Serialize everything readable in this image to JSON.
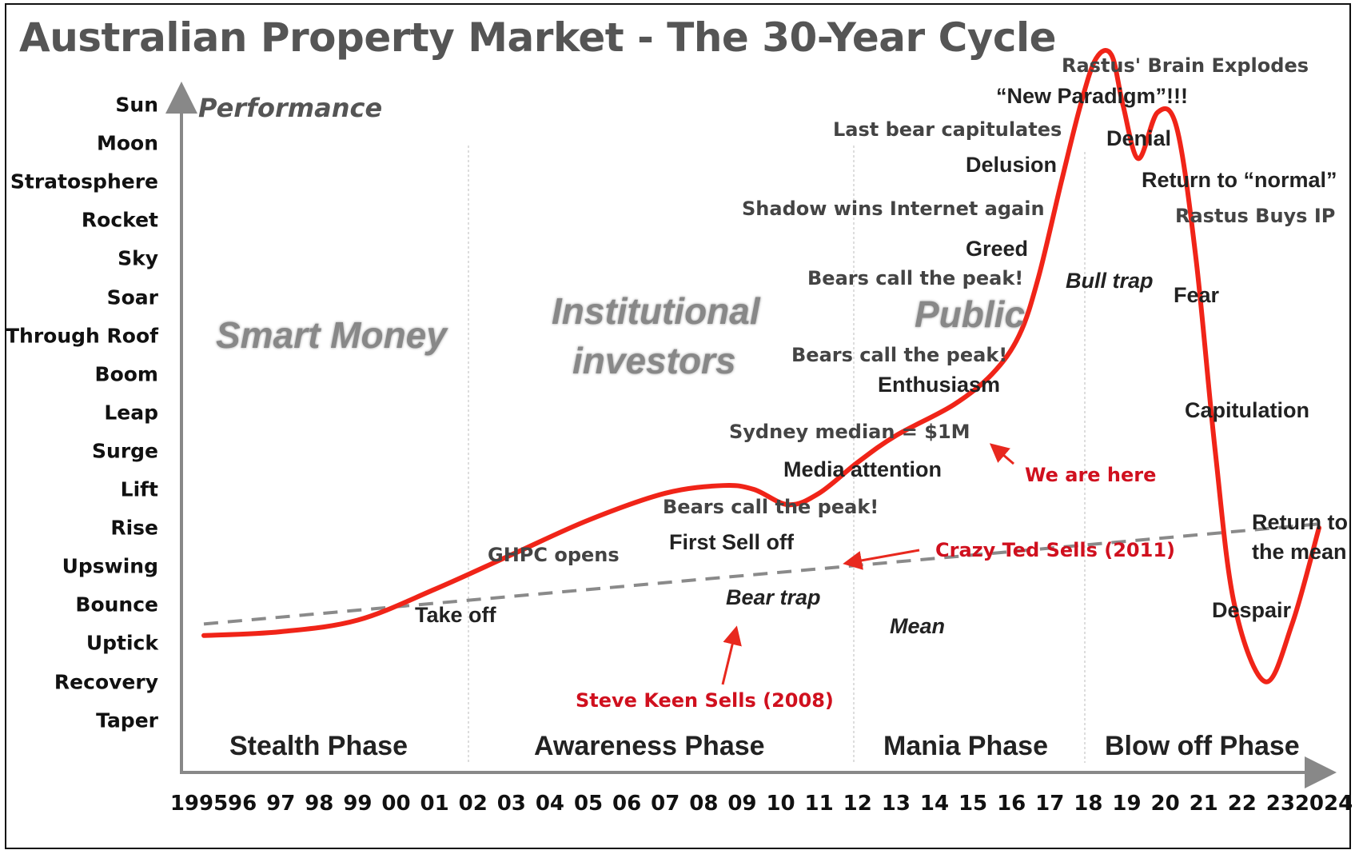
{
  "chart_data": {
    "type": "line",
    "title": "Australian Property Market - The 30-Year Cycle",
    "ylabel": "Performance",
    "xlabel": "",
    "x_tick_labels": [
      "1995",
      "96",
      "97",
      "98",
      "99",
      "00",
      "01",
      "02",
      "03",
      "04",
      "05",
      "06",
      "07",
      "08",
      "09",
      "10",
      "11",
      "12",
      "13",
      "14",
      "15",
      "16",
      "17",
      "18",
      "19",
      "20",
      "21",
      "22",
      "23",
      "2024"
    ],
    "y_tick_labels": [
      "Sun",
      "Moon",
      "Stratosphere",
      "Rocket",
      "Sky",
      "Soar",
      "Through Roof",
      "Boom",
      "Leap",
      "Surge",
      "Lift",
      "Rise",
      "Upswing",
      "Bounce",
      "Uptick",
      "Recovery",
      "Taper"
    ],
    "xlim": [
      1995,
      2024
    ],
    "ylim_levels": [
      "Taper",
      "Sun"
    ],
    "grid": false,
    "series": [
      {
        "name": "Performance",
        "color": "#f02418",
        "points": [
          {
            "x": 1995.0,
            "y": 2.2
          },
          {
            "x": 1997.0,
            "y": 2.3
          },
          {
            "x": 1999.0,
            "y": 2.6
          },
          {
            "x": 2001.0,
            "y": 3.4
          },
          {
            "x": 2003.0,
            "y": 4.3
          },
          {
            "x": 2005.0,
            "y": 5.2
          },
          {
            "x": 2007.0,
            "y": 5.9
          },
          {
            "x": 2008.5,
            "y": 6.1
          },
          {
            "x": 2009.3,
            "y": 6.0
          },
          {
            "x": 2010.2,
            "y": 5.6
          },
          {
            "x": 2011.0,
            "y": 5.9
          },
          {
            "x": 2012.0,
            "y": 6.7
          },
          {
            "x": 2013.0,
            "y": 7.4
          },
          {
            "x": 2014.5,
            "y": 8.2
          },
          {
            "x": 2015.5,
            "y": 9.0
          },
          {
            "x": 2016.2,
            "y": 10.0
          },
          {
            "x": 2016.7,
            "y": 11.5
          },
          {
            "x": 2017.3,
            "y": 14.0
          },
          {
            "x": 2017.8,
            "y": 16.0
          },
          {
            "x": 2018.2,
            "y": 17.2
          },
          {
            "x": 2018.6,
            "y": 17.3
          },
          {
            "x": 2018.9,
            "y": 16.0
          },
          {
            "x": 2019.3,
            "y": 14.6
          },
          {
            "x": 2019.8,
            "y": 15.8
          },
          {
            "x": 2020.3,
            "y": 15.4
          },
          {
            "x": 2020.8,
            "y": 12.0
          },
          {
            "x": 2021.3,
            "y": 7.0
          },
          {
            "x": 2021.8,
            "y": 3.0
          },
          {
            "x": 2022.6,
            "y": 1.0
          },
          {
            "x": 2023.3,
            "y": 2.5
          },
          {
            "x": 2024.0,
            "y": 5.0
          }
        ]
      },
      {
        "name": "Mean",
        "style": "dashed",
        "color": "#8a8a8a",
        "points": [
          {
            "x": 1995.0,
            "y": 2.5
          },
          {
            "x": 2024.0,
            "y": 5.1
          }
        ]
      }
    ],
    "phases": [
      {
        "label": "Stealth Phase",
        "range": [
          1995,
          2002
        ]
      },
      {
        "label": "Awareness Phase",
        "range": [
          2002,
          2012
        ]
      },
      {
        "label": "Mania Phase",
        "range": [
          2012,
          2018.5
        ]
      },
      {
        "label": "Blow off Phase",
        "range": [
          2018.5,
          2024
        ]
      }
    ],
    "background_labels": [
      "Smart Money",
      "Institutional investors",
      "Public"
    ],
    "annotations": [
      {
        "text": "Take off",
        "x": 2001.5
      },
      {
        "text": "GHPC opens",
        "x": 2005
      },
      {
        "text": "First Sell off",
        "x": 2008.8
      },
      {
        "text": "Bear trap",
        "x": 2010
      },
      {
        "text": "Bears call the peak!",
        "x": 2010.8
      },
      {
        "text": "Media attention",
        "x": 2013.5
      },
      {
        "text": "Sydney median = $1M",
        "x": 2013.5
      },
      {
        "text": "Enthusiasm",
        "x": 2015.7
      },
      {
        "text": "Bears call the peak!",
        "x": 2014.3
      },
      {
        "text": "Public",
        "x": 2016
      },
      {
        "text": "Bears call the peak!",
        "x": 2014.7
      },
      {
        "text": "Greed",
        "x": 2016.5
      },
      {
        "text": "Shadow wins Internet again",
        "x": 2014.5
      },
      {
        "text": "Delusion",
        "x": 2016.5
      },
      {
        "text": "Last bear capitulates",
        "x": 2016
      },
      {
        "text": "“New Paradigm”!!!",
        "x": 2018.6
      },
      {
        "text": "Rastus' Brain Explodes",
        "x": 2020
      },
      {
        "text": "Denial",
        "x": 2019.5
      },
      {
        "text": "Return to “normal”",
        "x": 2021.3
      },
      {
        "text": "Rastus Buys IP",
        "x": 2022
      },
      {
        "text": "Bull trap",
        "x": 2019.2
      },
      {
        "text": "Fear",
        "x": 2020.5
      },
      {
        "text": "Capitulation",
        "x": 2021.6
      },
      {
        "text": "Despair",
        "x": 2022.8
      },
      {
        "text": "Return to the mean",
        "x": 2023.5
      },
      {
        "text": "Mean",
        "x": 2013
      },
      {
        "text": "We are here",
        "x": 2017.5,
        "color": "red"
      },
      {
        "text": "Crazy Ted Sells (2011)",
        "x": 2016.5,
        "color": "red"
      },
      {
        "text": "Steve Keen Sells (2008)",
        "x": 2009,
        "color": "red"
      }
    ]
  },
  "labels": {
    "title": "Australian Property Market - The 30-Year Cycle",
    "performance": "Performance",
    "smart_money": "Smart Money",
    "institutional_1": "Institutional",
    "institutional_2": "investors",
    "public": "Public",
    "phases": [
      "Stealth Phase",
      "Awareness Phase",
      "Mania Phase",
      "Blow off Phase"
    ],
    "ann": {
      "take_off": "Take off",
      "ghpc": "GHPC opens",
      "first_sell": "First Sell off",
      "bear_trap": "Bear trap",
      "bears1": "Bears call the peak!",
      "media": "Media attention",
      "sydney": "Sydney median = $1M",
      "enthusiasm": "Enthusiasm",
      "bears2": "Bears call the peak!",
      "bears3": "Bears call the peak!",
      "greed": "Greed",
      "shadow": "Shadow wins Internet again",
      "delusion": "Delusion",
      "last_bear": "Last bear capitulates",
      "new_paradigm": "“New Paradigm”!!!",
      "rastus_brain": "Rastus' Brain Explodes",
      "denial": "Denial",
      "return_normal": "Return to “normal”",
      "rastus_buys": "Rastus Buys IP",
      "bull_trap": "Bull trap",
      "fear": "Fear",
      "capitulation": "Capitulation",
      "despair": "Despair",
      "return_mean_1": "Return to",
      "return_mean_2": "the mean",
      "mean": "Mean",
      "we_are_here": "We are here",
      "crazy_ted": "Crazy Ted Sells (2011)",
      "steve_keen": "Steve Keen Sells (2008)"
    }
  }
}
